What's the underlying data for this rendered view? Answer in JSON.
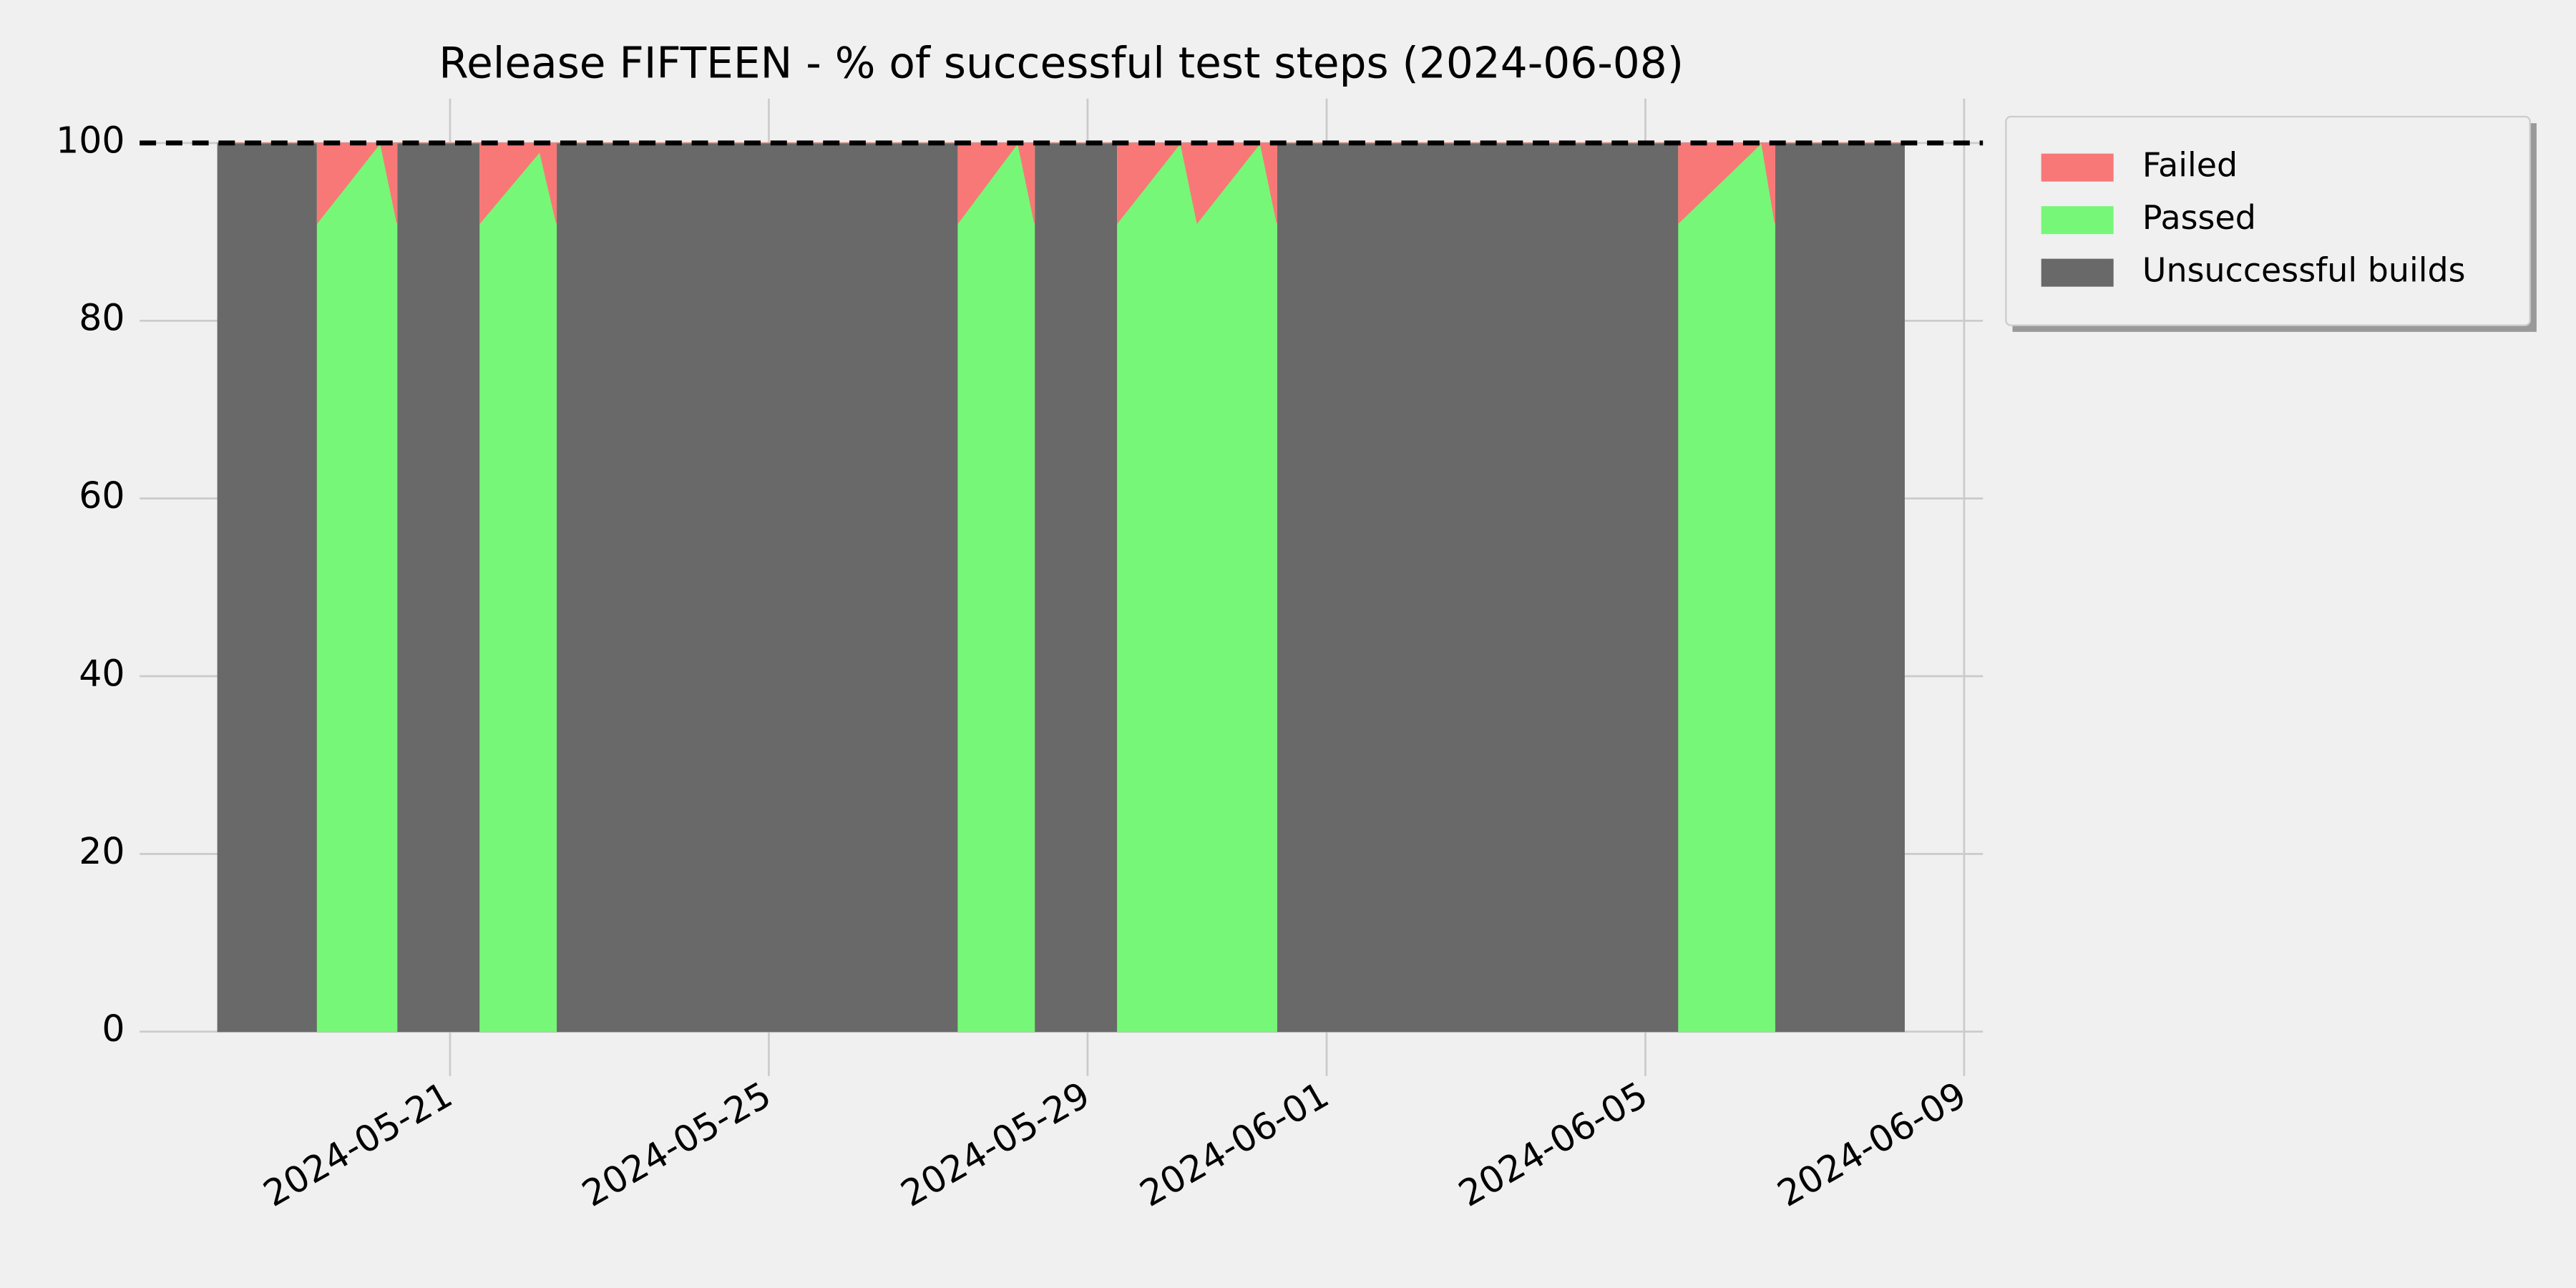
{
  "chart_data": {
    "type": "stacked_area",
    "title": "Release FIFTEEN - % of successful test steps (2024-06-08)",
    "x": [
      "2024-05-18T02:00",
      "2024-05-19T08:00",
      "2024-05-19T08:00",
      "2024-05-20T03:00",
      "2024-05-20T08:00",
      "2024-05-20T08:00",
      "2024-05-21T09:00",
      "2024-05-21T09:00",
      "2024-05-22T03:00",
      "2024-05-22T08:00",
      "2024-05-22T08:00",
      "2024-05-27T09:00",
      "2024-05-27T09:00",
      "2024-05-28T03:00",
      "2024-05-28T08:00",
      "2024-05-28T08:00",
      "2024-05-29T09:00",
      "2024-05-29T09:00",
      "2024-05-30T04:00",
      "2024-05-30T09:00",
      "2024-05-31T04:00",
      "2024-05-31T09:00",
      "2024-05-31T09:00",
      "2024-06-05T10:00",
      "2024-06-05T10:00",
      "2024-06-06T11:00",
      "2024-06-06T15:00",
      "2024-06-06T15:00",
      "2024-06-08T06:00"
    ],
    "series": [
      {
        "name": "Failed",
        "color": "#f87878",
        "values": [
          0,
          0,
          9,
          0,
          9,
          0,
          0,
          9,
          1,
          9,
          0,
          0,
          9,
          0,
          9,
          0,
          0,
          9,
          0,
          9,
          0,
          9,
          0,
          0,
          9,
          0,
          9,
          0,
          0
        ]
      },
      {
        "name": "Passed",
        "color": "#77f777",
        "values": [
          0,
          0,
          91,
          100,
          91,
          0,
          0,
          91,
          99,
          91,
          0,
          0,
          91,
          100,
          91,
          0,
          0,
          91,
          100,
          91,
          100,
          91,
          0,
          0,
          91,
          100,
          91,
          0,
          0
        ]
      },
      {
        "name": "Unsuccessful builds",
        "color": "#696969",
        "values": [
          100,
          100,
          0,
          0,
          0,
          100,
          100,
          0,
          0,
          0,
          100,
          100,
          0,
          0,
          0,
          100,
          100,
          0,
          0,
          0,
          0,
          0,
          100,
          100,
          0,
          0,
          0,
          100,
          100
        ]
      }
    ],
    "xlim": [
      "2024-05-17T02:30",
      "2024-06-09T05:40"
    ],
    "xticks": [
      "2024-05-21",
      "2024-05-25",
      "2024-05-29",
      "2024-06-01",
      "2024-06-05",
      "2024-06-09"
    ],
    "ylim": [
      -5,
      105
    ],
    "yticks": [
      0,
      20,
      40,
      60,
      80,
      100
    ],
    "reference_line": 100,
    "grid": true,
    "legend": "outside-upper-right"
  }
}
